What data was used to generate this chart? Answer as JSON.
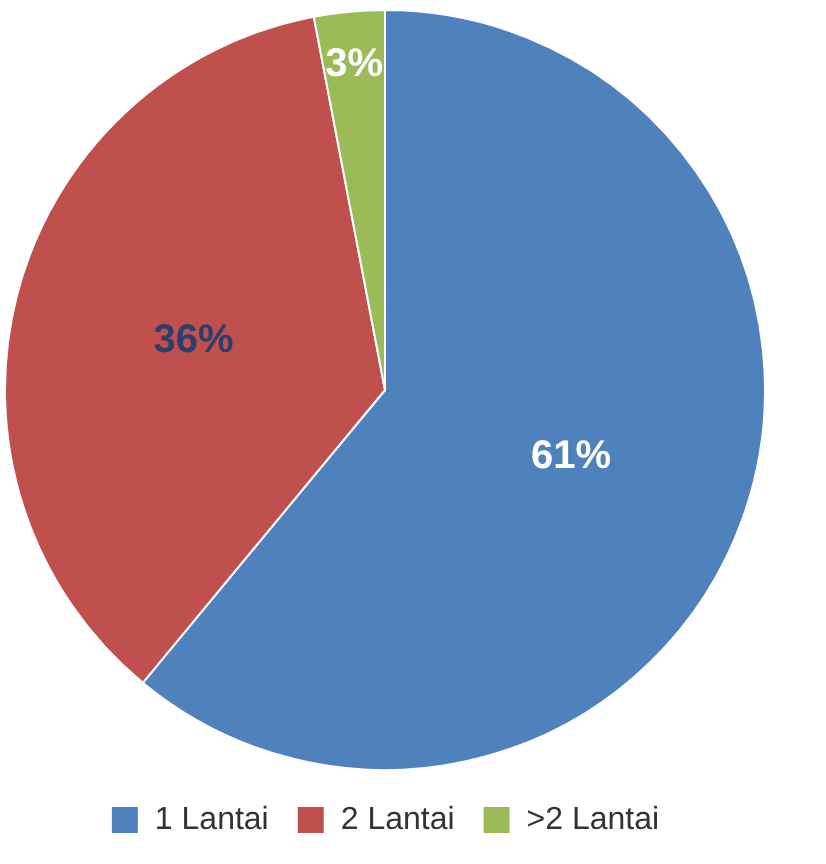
{
  "chart_data": {
    "type": "pie",
    "categories": [
      "1 Lantai",
      "2 Lantai",
      ">2 Lantai"
    ],
    "values": [
      61,
      36,
      3
    ],
    "colors": [
      "#4f81bd",
      "#c0504d",
      "#9bbb59"
    ],
    "value_labels": [
      "61%",
      "36%",
      "3%"
    ],
    "legend": "bottom"
  }
}
